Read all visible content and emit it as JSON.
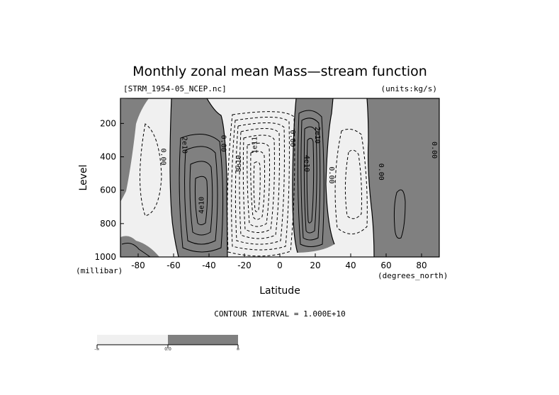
{
  "chart_data": {
    "type": "contour",
    "title": "Monthly zonal mean Mass—stream function",
    "subtitle_left": "[STRM_1954-05_NCEP.nc]",
    "subtitle_right": "(units:kg/s)",
    "xlabel": "Latitude",
    "ylabel": "Level",
    "x_unit": "(degrees_north)",
    "y_unit": "(millibar)",
    "xlim": [
      -90,
      90
    ],
    "ylim": [
      1000,
      50
    ],
    "y_reversed": true,
    "x_ticks": [
      -80,
      -60,
      -40,
      -20,
      0,
      20,
      40,
      60,
      80
    ],
    "x_tick_labels": [
      "-80",
      "-60",
      "-40",
      "-20",
      "0",
      "20",
      "40",
      "60",
      "80"
    ],
    "y_ticks": [
      200,
      400,
      600,
      800,
      1000
    ],
    "y_tick_labels": [
      "200",
      "400",
      "600",
      "800",
      "1000"
    ],
    "contour_interval_text": "CONTOUR INTERVAL = 1.000E+10",
    "contour_interval": 10000000000.0,
    "shading": {
      "negative": "#f0f0f0",
      "positive": "#808080"
    },
    "cells": [
      {
        "sign": "negative",
        "lat_range": [
          -90,
          -62
        ],
        "center": [
          -76,
          520
        ],
        "peak": -10000000000.0
      },
      {
        "sign": "positive",
        "lat_range": [
          -63,
          -32
        ],
        "center": [
          -45,
          550
        ],
        "peak": 50000000000.0
      },
      {
        "sign": "negative",
        "lat_range": [
          -32,
          8
        ],
        "center": [
          -12,
          520
        ],
        "peak": -130000000000.0
      },
      {
        "sign": "positive",
        "lat_range": [
          8,
          28
        ],
        "center": [
          16,
          480
        ],
        "peak": 60000000000.0
      },
      {
        "sign": "negative",
        "lat_range": [
          28,
          55
        ],
        "center": [
          42,
          520
        ],
        "peak": -30000000000.0
      },
      {
        "sign": "positive",
        "lat_range": [
          55,
          90
        ],
        "center": [
          68,
          700
        ],
        "peak": 10000000000.0
      }
    ],
    "contour_labels": [
      "0.00",
      "2e10",
      "4e10",
      "0.00",
      "8e10",
      "1e11",
      "0.00",
      "4e10",
      "2e10",
      "0.00",
      "0.00",
      "0.00"
    ],
    "colorbar": {
      "labels": [
        "-∞",
        "0.0",
        "∞"
      ],
      "colors": [
        "#f0f0f0",
        "#808080"
      ]
    }
  }
}
